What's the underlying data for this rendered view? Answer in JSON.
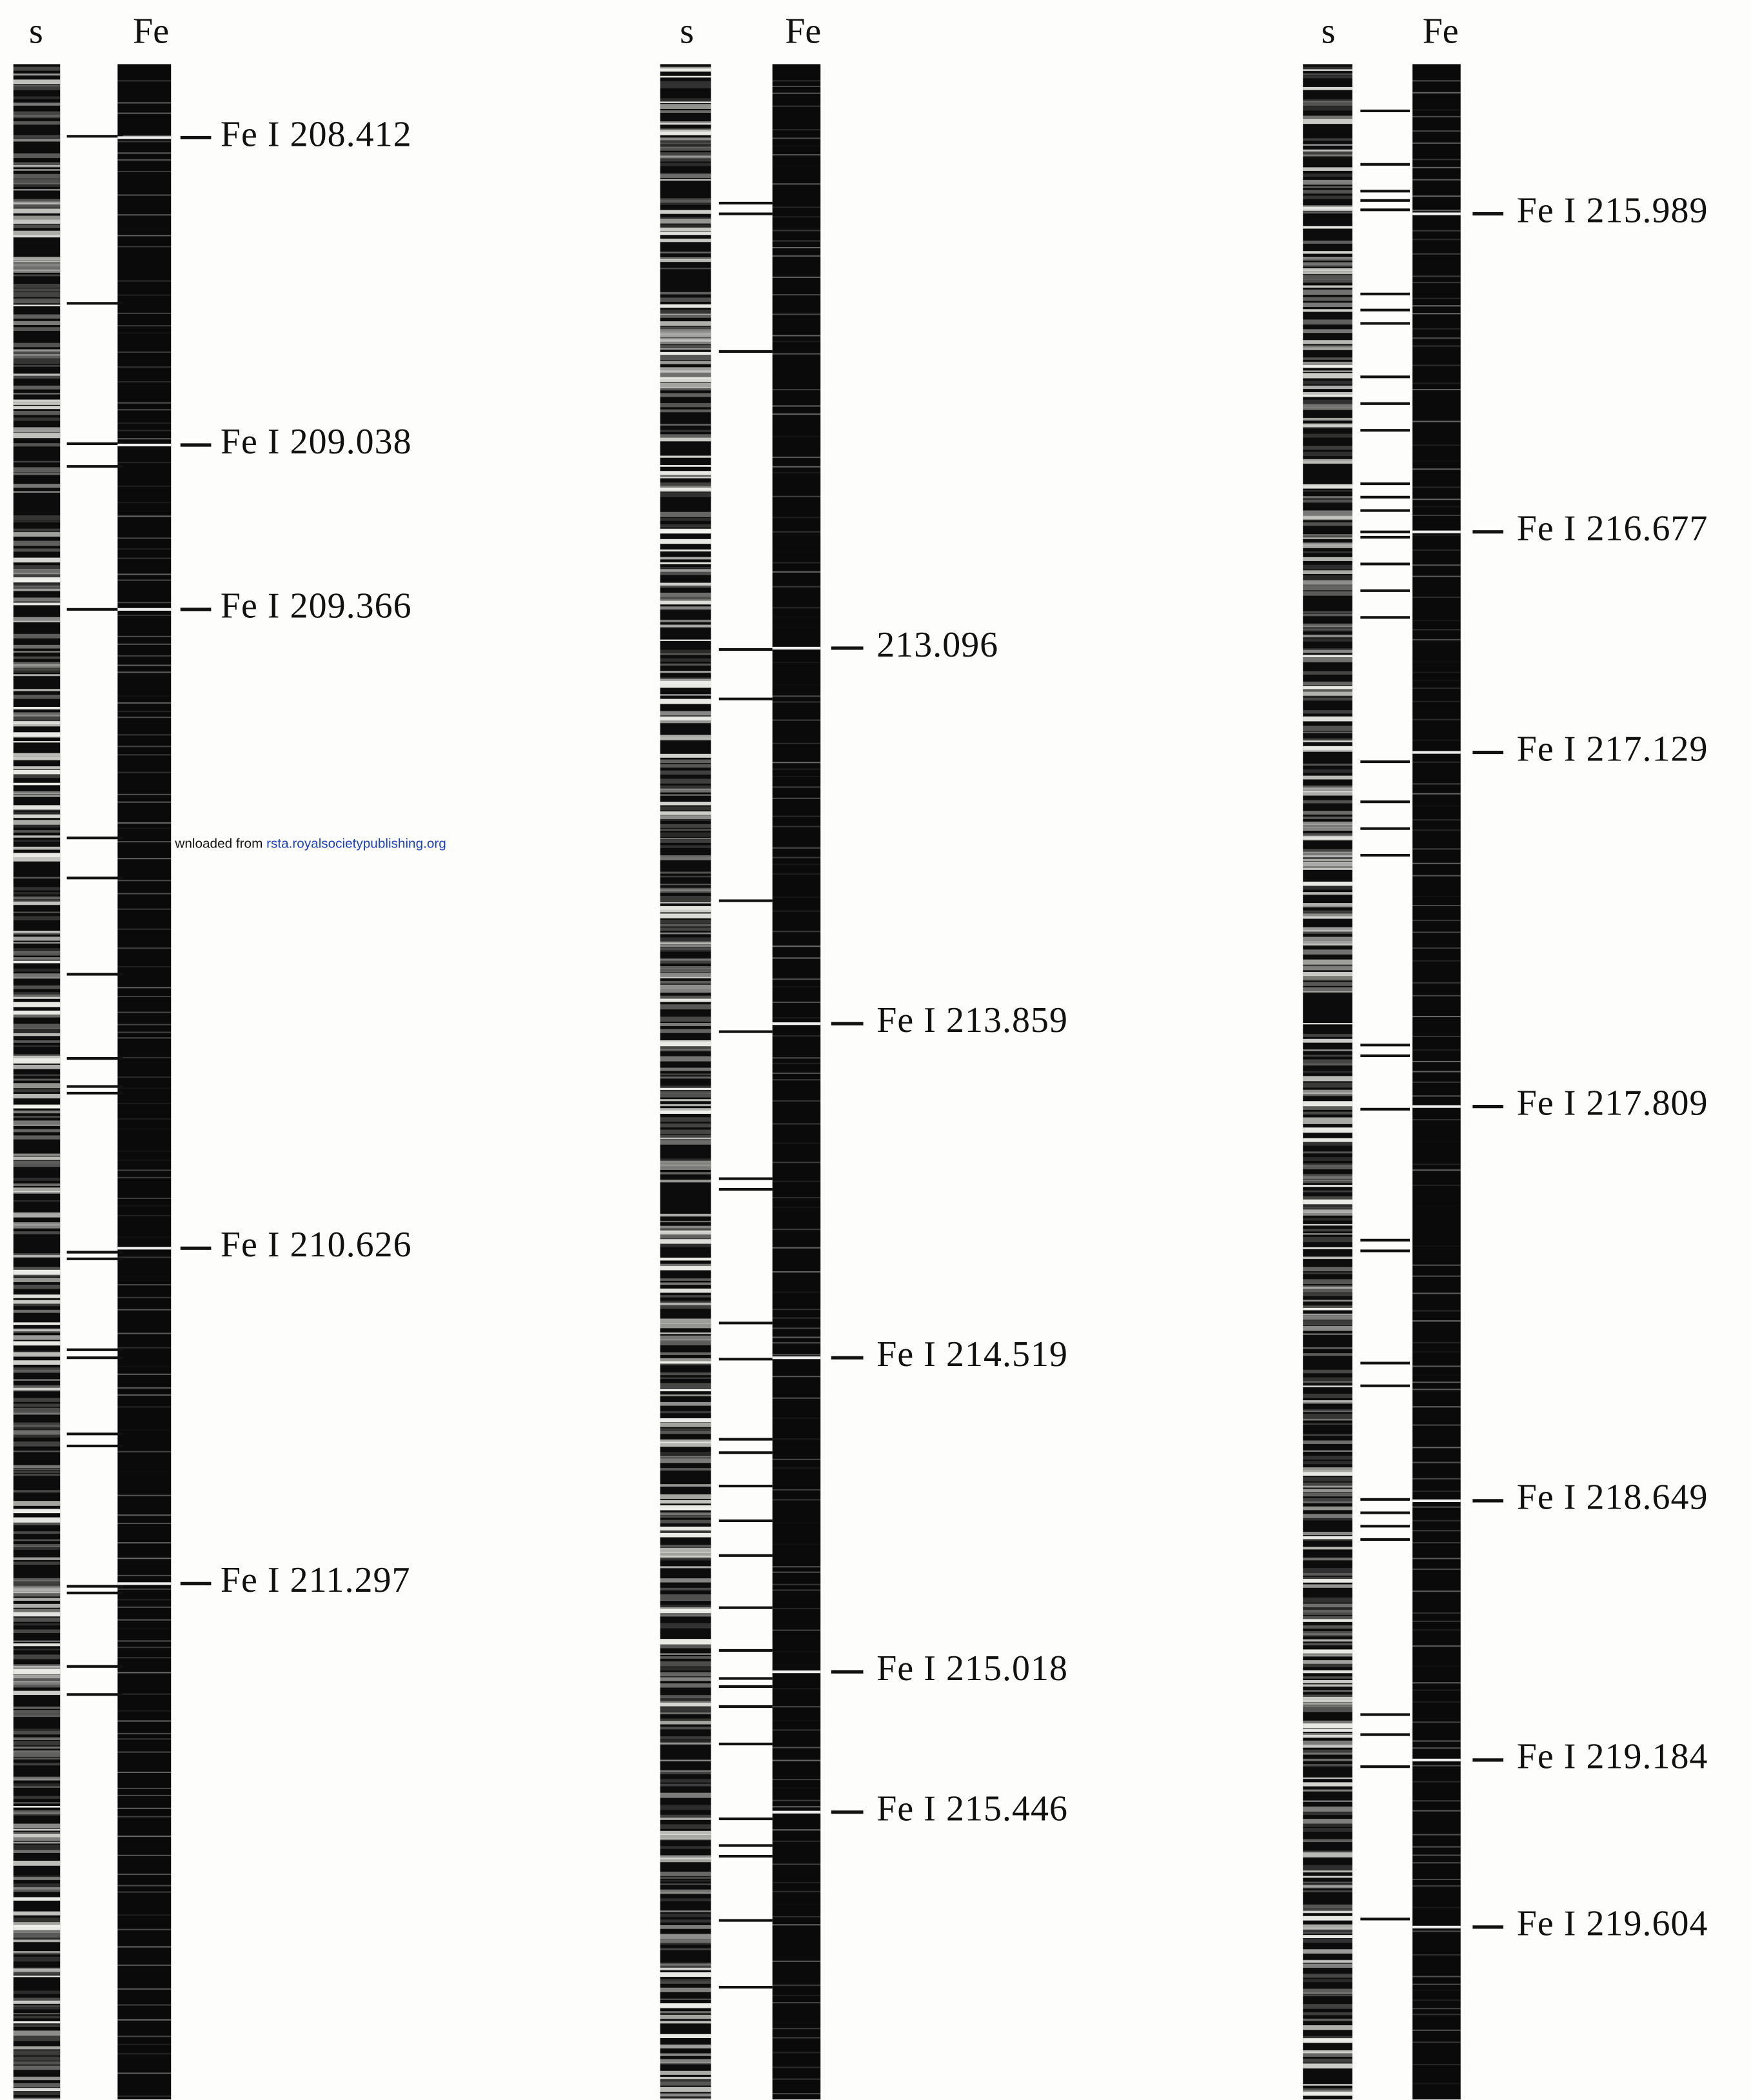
{
  "columns": [
    {
      "headers": [
        "s",
        "Fe"
      ],
      "labels": [
        "Fe I 208.412",
        "Fe I 209.038",
        "Fe I 209.366",
        "Fe I 210.626",
        "Fe I 211.297"
      ]
    },
    {
      "headers": [
        "s",
        "Fe"
      ],
      "labels": [
        "213.096",
        "Fe I 213.859",
        "Fe I 214.519",
        "Fe I 215.018",
        "Fe I 215.446"
      ]
    },
    {
      "headers": [
        "s",
        "Fe"
      ],
      "labels": [
        "Fe I 215.989",
        "Fe I 216.677",
        "Fe I 217.129",
        "Fe I 217.809",
        "Fe I 218.649",
        "Fe I 219.184",
        "Fe I 219.604"
      ]
    }
  ],
  "watermark": {
    "prefix": "wnloaded from",
    "link": "rsta.royalsocietypublishing.org"
  }
}
